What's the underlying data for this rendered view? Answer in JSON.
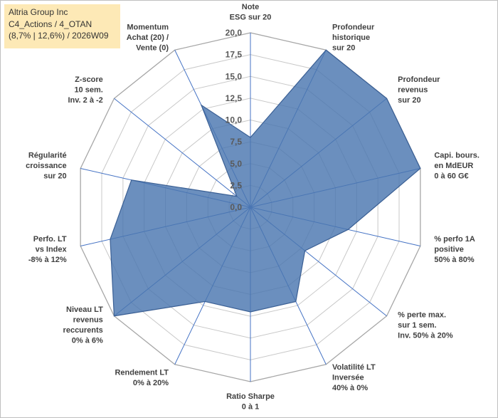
{
  "header": {
    "line1": "Altria Group Inc",
    "line2": "C4_Actions / 4_OTAN",
    "line3": "(8,7% | 12,6%) / 2026W09"
  },
  "chart_data": {
    "type": "radar",
    "title": "Altria Group Inc",
    "rmin": 0,
    "rmax": 20,
    "tick_step": 2.5,
    "ticks": [
      "0,0",
      "2,5",
      "5,0",
      "7,5",
      "10,0",
      "12,5",
      "15,0",
      "17,5",
      "20,0"
    ],
    "categories": [
      [
        "Note",
        "ESG sur 20"
      ],
      [
        "Profondeur",
        "historique",
        "sur 20"
      ],
      [
        "Profondeur",
        "revenus",
        "sur 20"
      ],
      [
        "Capi. bours.",
        "en MdEUR",
        "0 à 60 G€"
      ],
      [
        "% perfo 1A",
        "positive",
        "50% à 80%"
      ],
      [
        "% perte max.",
        "sur 1 sem.",
        "Inv. 50% à 20%"
      ],
      [
        "Volatilité LT",
        "Inversée",
        "40% à 0%"
      ],
      [
        "Ratio Sharpe",
        "0 à 1"
      ],
      [
        "Rendement LT",
        "0% à 20%"
      ],
      [
        "Niveau LT",
        "revenus",
        "reccurents",
        "0% à 6%"
      ],
      [
        "Perfo. LT",
        "vs Index",
        "-8% à 12%"
      ],
      [
        "Régularité",
        "croissance",
        "sur 20"
      ],
      [
        "Z-score",
        "10 sem.",
        "Inv. 2 à -2"
      ],
      [
        "Momentum",
        "Achat (20) /",
        "Vente (0)"
      ]
    ],
    "series": [
      {
        "name": "Altria Group Inc",
        "color": "#4a76b0",
        "values": [
          8,
          20,
          20,
          20,
          11.5,
          8,
          12,
          12,
          12,
          20,
          16.5,
          14,
          2,
          13
        ]
      }
    ]
  }
}
